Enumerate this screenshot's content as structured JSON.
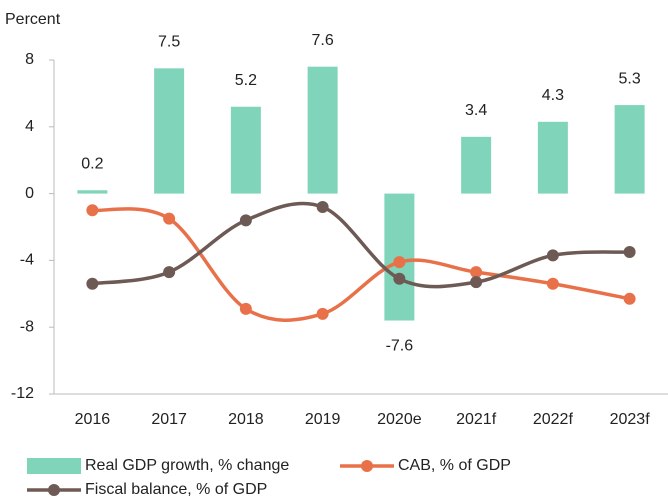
{
  "chart_data": {
    "type": "bar-line",
    "y_label": "Percent",
    "categories": [
      "2016",
      "2017",
      "2018",
      "2019",
      "2020e",
      "2021f",
      "2022f",
      "2023f"
    ],
    "series": [
      {
        "name": "Real GDP growth, % change",
        "type": "bar",
        "color": "#80d4b9",
        "values": [
          0.2,
          7.5,
          5.2,
          7.6,
          -7.6,
          3.4,
          4.3,
          5.3
        ]
      },
      {
        "name": "CAB, % of GDP",
        "type": "line",
        "color": "#e8714a",
        "values": [
          -1.0,
          -1.5,
          -6.9,
          -7.2,
          -4.1,
          -4.7,
          -5.4,
          -6.3
        ]
      },
      {
        "name": "Fiscal balance, % of GDP",
        "type": "line",
        "color": "#6e5a55",
        "values": [
          -5.4,
          -4.7,
          -1.6,
          -0.8,
          -5.1,
          -5.3,
          -3.7,
          -3.5
        ]
      }
    ],
    "ylim": [
      -12,
      8
    ],
    "yticks": [
      -12,
      -8,
      -4,
      0,
      4,
      8
    ]
  }
}
